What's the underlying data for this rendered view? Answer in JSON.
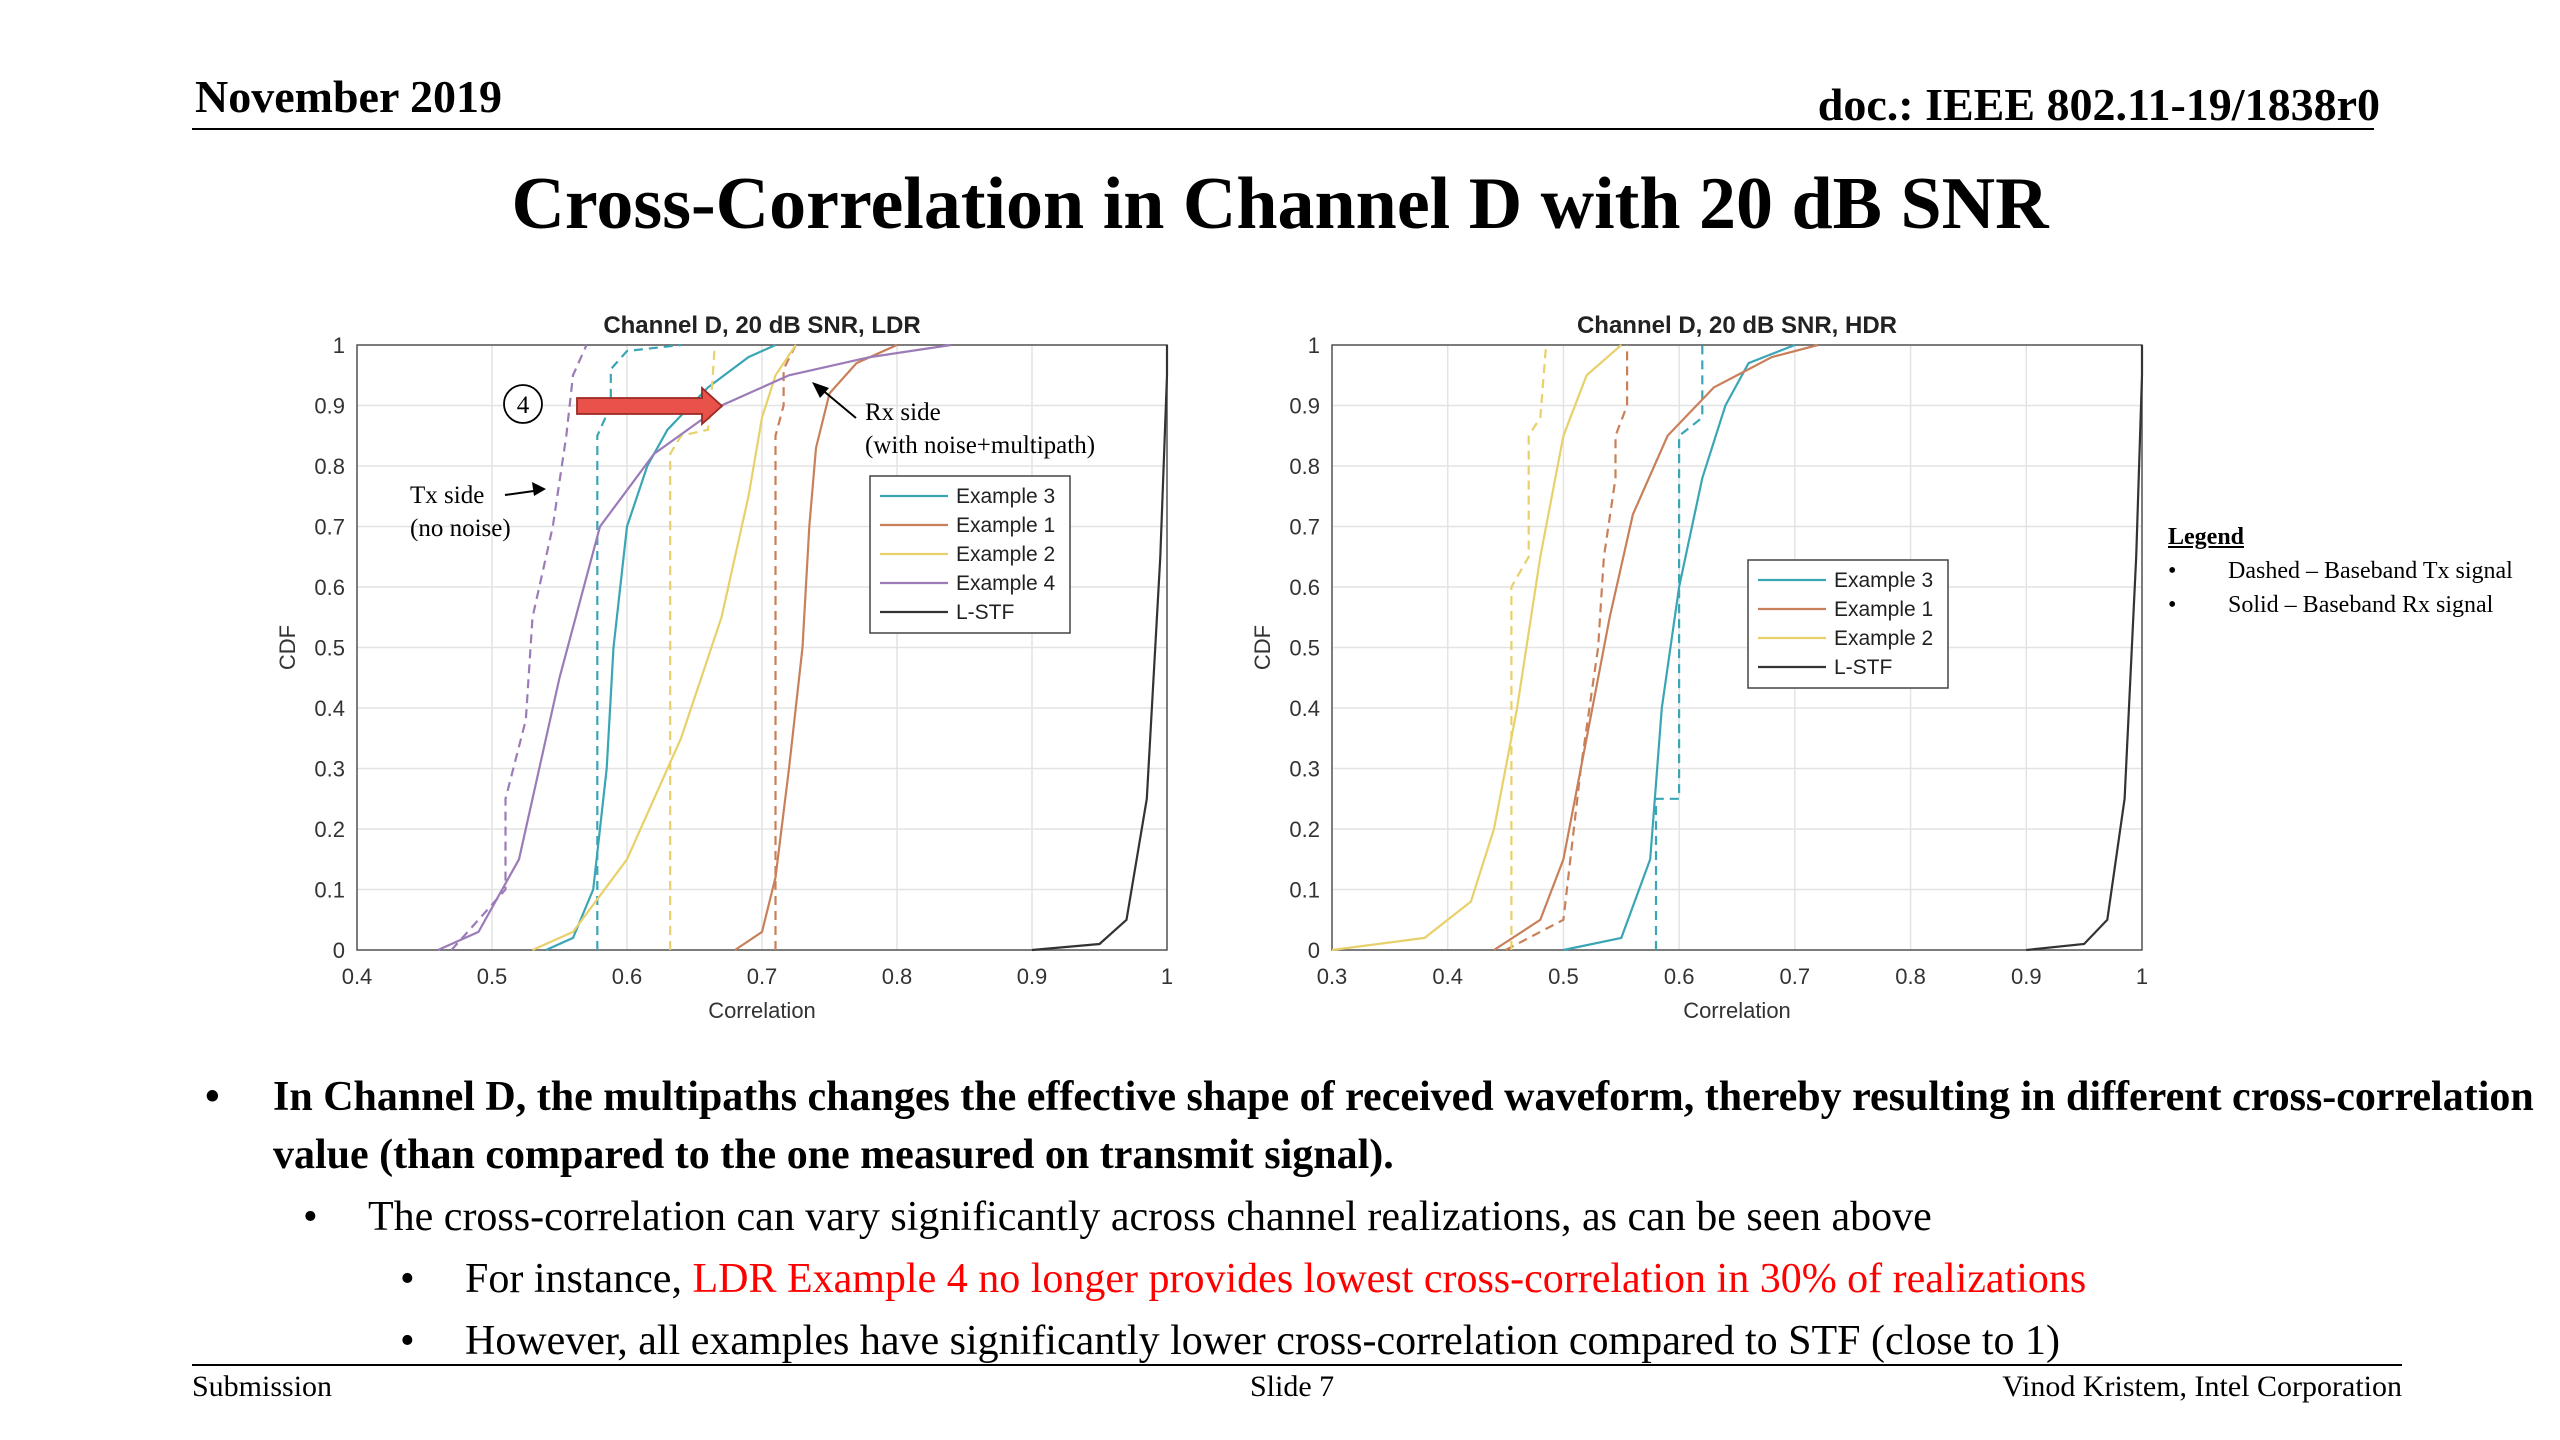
{
  "header": {
    "date": "November 2019",
    "doc": "doc.: IEEE 802.11-19/1838r0"
  },
  "title": "Cross-Correlation in Channel D with 20 dB SNR",
  "chart_data": [
    {
      "type": "line",
      "title": "Channel D, 20 dB SNR, LDR",
      "xlabel": "Correlation",
      "ylabel": "CDF",
      "xlim": [
        0.4,
        1
      ],
      "ylim": [
        0,
        1
      ],
      "xticks": [
        "0.4",
        "0.5",
        "0.6",
        "0.7",
        "0.8",
        "0.9",
        "1"
      ],
      "yticks": [
        "0",
        "0.1",
        "0.2",
        "0.3",
        "0.4",
        "0.5",
        "0.6",
        "0.7",
        "0.8",
        "0.9",
        "1"
      ],
      "grid": true,
      "legend": {
        "placement": "center-right",
        "entries": [
          "Example 3",
          "Example 1",
          "Example 2",
          "Example 4",
          "L-STF"
        ]
      },
      "annotations": {
        "marker": "4",
        "tx_label": [
          "Tx side",
          "(no noise)"
        ],
        "rx_label": [
          "Rx side",
          "(with noise+multipath)"
        ]
      },
      "series": [
        {
          "name": "Example 3",
          "color": "#3aa6b5",
          "style": "solid",
          "points": [
            [
              0.54,
              0
            ],
            [
              0.56,
              0.02
            ],
            [
              0.575,
              0.1
            ],
            [
              0.585,
              0.3
            ],
            [
              0.59,
              0.5
            ],
            [
              0.6,
              0.7
            ],
            [
              0.615,
              0.8
            ],
            [
              0.63,
              0.86
            ],
            [
              0.66,
              0.93
            ],
            [
              0.69,
              0.98
            ],
            [
              0.71,
              1
            ]
          ]
        },
        {
          "name": "Example 3",
          "color": "#3aa6b5",
          "style": "dashed",
          "points": [
            [
              0.578,
              0
            ],
            [
              0.578,
              0.85
            ],
            [
              0.588,
              0.9
            ],
            [
              0.588,
              0.96
            ],
            [
              0.6,
              0.99
            ],
            [
              0.64,
              1
            ]
          ]
        },
        {
          "name": "Example 1",
          "color": "#c9805a",
          "style": "solid",
          "points": [
            [
              0.68,
              0
            ],
            [
              0.7,
              0.03
            ],
            [
              0.71,
              0.12
            ],
            [
              0.72,
              0.3
            ],
            [
              0.73,
              0.5
            ],
            [
              0.735,
              0.7
            ],
            [
              0.74,
              0.83
            ],
            [
              0.75,
              0.92
            ],
            [
              0.77,
              0.97
            ],
            [
              0.8,
              1
            ]
          ]
        },
        {
          "name": "Example 1",
          "color": "#c9805a",
          "style": "dashed",
          "points": [
            [
              0.71,
              0
            ],
            [
              0.71,
              0.85
            ],
            [
              0.716,
              0.9
            ],
            [
              0.716,
              0.96
            ],
            [
              0.725,
              1
            ]
          ]
        },
        {
          "name": "Example 2",
          "color": "#e8d06a",
          "style": "solid",
          "points": [
            [
              0.53,
              0
            ],
            [
              0.56,
              0.03
            ],
            [
              0.6,
              0.15
            ],
            [
              0.64,
              0.35
            ],
            [
              0.67,
              0.55
            ],
            [
              0.69,
              0.75
            ],
            [
              0.7,
              0.88
            ],
            [
              0.71,
              0.95
            ],
            [
              0.725,
              1
            ]
          ]
        },
        {
          "name": "Example 2",
          "color": "#e8d06a",
          "style": "dashed",
          "points": [
            [
              0.632,
              0
            ],
            [
              0.632,
              0.82
            ],
            [
              0.64,
              0.85
            ],
            [
              0.66,
              0.86
            ],
            [
              0.662,
              0.9
            ],
            [
              0.665,
              1
            ]
          ]
        },
        {
          "name": "Example 4",
          "color": "#9b7bb8",
          "style": "solid",
          "points": [
            [
              0.46,
              0
            ],
            [
              0.49,
              0.03
            ],
            [
              0.52,
              0.15
            ],
            [
              0.55,
              0.45
            ],
            [
              0.58,
              0.7
            ],
            [
              0.62,
              0.82
            ],
            [
              0.67,
              0.9
            ],
            [
              0.72,
              0.95
            ],
            [
              0.78,
              0.98
            ],
            [
              0.84,
              1
            ]
          ]
        },
        {
          "name": "Example 4",
          "color": "#9b7bb8",
          "style": "dashed",
          "points": [
            [
              0.47,
              0
            ],
            [
              0.51,
              0.1
            ],
            [
              0.51,
              0.25
            ],
            [
              0.525,
              0.38
            ],
            [
              0.53,
              0.55
            ],
            [
              0.545,
              0.7
            ],
            [
              0.555,
              0.85
            ],
            [
              0.56,
              0.95
            ],
            [
              0.57,
              1
            ]
          ]
        },
        {
          "name": "L-STF",
          "color": "#333333",
          "style": "solid",
          "points": [
            [
              0.9,
              0
            ],
            [
              0.95,
              0.01
            ],
            [
              0.97,
              0.05
            ],
            [
              0.985,
              0.25
            ],
            [
              0.995,
              0.65
            ],
            [
              1.0,
              0.95
            ],
            [
              1.0,
              1
            ]
          ]
        }
      ]
    },
    {
      "type": "line",
      "title": "Channel D, 20 dB SNR, HDR",
      "xlabel": "Correlation",
      "ylabel": "CDF",
      "xlim": [
        0.3,
        1
      ],
      "ylim": [
        0,
        1
      ],
      "xticks": [
        "0.3",
        "0.4",
        "0.5",
        "0.6",
        "0.7",
        "0.8",
        "0.9",
        "1"
      ],
      "yticks": [
        "0",
        "0.1",
        "0.2",
        "0.3",
        "0.4",
        "0.5",
        "0.6",
        "0.7",
        "0.8",
        "0.9",
        "1"
      ],
      "grid": true,
      "legend": {
        "placement": "center",
        "entries": [
          "Example 3",
          "Example 1",
          "Example 2",
          "L-STF"
        ]
      },
      "series": [
        {
          "name": "Example 3",
          "color": "#3aa6b5",
          "style": "solid",
          "points": [
            [
              0.5,
              0
            ],
            [
              0.55,
              0.02
            ],
            [
              0.575,
              0.15
            ],
            [
              0.585,
              0.4
            ],
            [
              0.6,
              0.6
            ],
            [
              0.62,
              0.78
            ],
            [
              0.64,
              0.9
            ],
            [
              0.66,
              0.97
            ],
            [
              0.7,
              1
            ]
          ]
        },
        {
          "name": "Example 3",
          "color": "#3aa6b5",
          "style": "dashed",
          "points": [
            [
              0.58,
              0
            ],
            [
              0.58,
              0.25
            ],
            [
              0.6,
              0.25
            ],
            [
              0.6,
              0.85
            ],
            [
              0.62,
              0.88
            ],
            [
              0.62,
              1
            ]
          ]
        },
        {
          "name": "Example 1",
          "color": "#c9805a",
          "style": "solid",
          "points": [
            [
              0.44,
              0
            ],
            [
              0.48,
              0.05
            ],
            [
              0.5,
              0.15
            ],
            [
              0.52,
              0.35
            ],
            [
              0.54,
              0.55
            ],
            [
              0.56,
              0.72
            ],
            [
              0.59,
              0.85
            ],
            [
              0.63,
              0.93
            ],
            [
              0.68,
              0.98
            ],
            [
              0.72,
              1
            ]
          ]
        },
        {
          "name": "Example 1",
          "color": "#c9805a",
          "style": "dashed",
          "points": [
            [
              0.45,
              0
            ],
            [
              0.5,
              0.05
            ],
            [
              0.515,
              0.3
            ],
            [
              0.53,
              0.5
            ],
            [
              0.535,
              0.65
            ],
            [
              0.545,
              0.78
            ],
            [
              0.545,
              0.85
            ],
            [
              0.555,
              0.9
            ],
            [
              0.555,
              1
            ]
          ]
        },
        {
          "name": "Example 2",
          "color": "#e8d06a",
          "style": "solid",
          "points": [
            [
              0.3,
              0
            ],
            [
              0.38,
              0.02
            ],
            [
              0.42,
              0.08
            ],
            [
              0.44,
              0.2
            ],
            [
              0.46,
              0.4
            ],
            [
              0.48,
              0.65
            ],
            [
              0.5,
              0.85
            ],
            [
              0.52,
              0.95
            ],
            [
              0.55,
              1
            ]
          ]
        },
        {
          "name": "Example 2",
          "color": "#e8d06a",
          "style": "dashed",
          "points": [
            [
              0.455,
              0
            ],
            [
              0.455,
              0.6
            ],
            [
              0.47,
              0.65
            ],
            [
              0.47,
              0.85
            ],
            [
              0.48,
              0.88
            ],
            [
              0.485,
              1
            ]
          ]
        },
        {
          "name": "L-STF",
          "color": "#333333",
          "style": "solid",
          "points": [
            [
              0.9,
              0
            ],
            [
              0.95,
              0.01
            ],
            [
              0.97,
              0.05
            ],
            [
              0.985,
              0.25
            ],
            [
              0.995,
              0.65
            ],
            [
              1.0,
              0.95
            ],
            [
              1.0,
              1
            ]
          ]
        }
      ]
    }
  ],
  "legend_note": {
    "title": "Legend",
    "items": [
      "Dashed – Baseband Tx signal",
      "Solid – Baseband Rx signal"
    ]
  },
  "bullets": {
    "l1_bullet": "•",
    "l1": "In Channel D, the multipaths changes the effective shape of received waveform, thereby resulting in different cross-correlation value (than compared to the one measured on transmit signal).",
    "l2_bullet": "•",
    "l2": "The cross-correlation can vary significantly across channel realizations, as can be seen above",
    "l3a_bullet": "•",
    "l3a_prefix": "For instance, ",
    "l3a_red": "LDR Example 4 no longer provides lowest cross-correlation in 30% of realizations",
    "l3b_bullet": "•",
    "l3b": "However, all examples have significantly lower cross-correlation compared to STF (close to 1)"
  },
  "footer": {
    "left": "Submission",
    "center": "Slide 7",
    "right": "Vinod Kristem, Intel Corporation"
  }
}
